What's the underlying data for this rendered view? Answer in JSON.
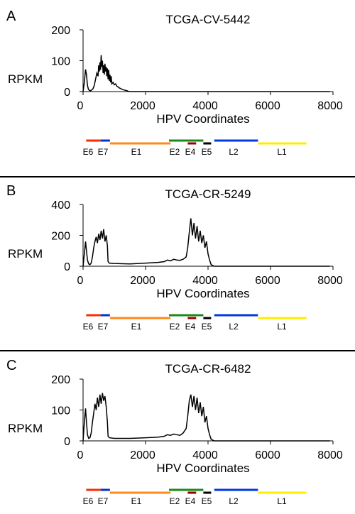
{
  "figure": {
    "x_axis_label": "HPV Coordinates",
    "y_axis_label": "RPKM",
    "gene_colors": {
      "E6": "#ff2a00",
      "E7": "#0033cc",
      "E1": "#ff8a1a",
      "E2": "#1a8a1a",
      "E4": "#990000",
      "E5": "#000000",
      "L2": "#0038e6",
      "L1": "#ffee00"
    }
  },
  "chart_data": [
    {
      "type": "line",
      "panel_label": "A",
      "title": "TCGA-CV-5442",
      "xlabel": "HPV Coordinates",
      "ylabel": "RPKM",
      "xlim": [
        0,
        8000
      ],
      "ylim": [
        0,
        200
      ],
      "x_ticks": [
        0,
        2000,
        4000,
        6000,
        8000
      ],
      "y_ticks": [
        0,
        100,
        200
      ],
      "grid": false,
      "legend": "none",
      "series": [
        {
          "x": [
            0,
            40,
            80,
            110,
            140,
            170,
            200,
            240,
            280,
            320,
            360,
            400,
            440,
            480,
            500,
            520,
            540,
            560,
            580,
            600,
            620,
            640,
            660,
            680,
            700,
            720,
            740,
            760,
            780,
            800,
            820,
            840,
            860,
            880,
            900,
            920,
            960,
            1000,
            1040,
            1080,
            1120,
            1160,
            1200,
            1240,
            1280,
            1320,
            1360,
            1400,
            1450,
            1500,
            2000,
            3000,
            4000,
            5000,
            6000,
            7000,
            7900
          ],
          "y": [
            0,
            30,
            72,
            55,
            20,
            8,
            4,
            3,
            5,
            10,
            20,
            40,
            60,
            50,
            85,
            65,
            95,
            70,
            118,
            80,
            100,
            60,
            85,
            55,
            90,
            65,
            80,
            50,
            75,
            40,
            70,
            35,
            55,
            30,
            50,
            25,
            30,
            22,
            25,
            18,
            15,
            12,
            10,
            8,
            6,
            5,
            4,
            3,
            1,
            0,
            0,
            0,
            0,
            0,
            0,
            0,
            0
          ]
        }
      ]
    },
    {
      "type": "line",
      "panel_label": "B",
      "title": "TCGA-CR-5249",
      "xlabel": "HPV Coordinates",
      "ylabel": "RPKM",
      "xlim": [
        0,
        8000
      ],
      "ylim": [
        0,
        400
      ],
      "x_ticks": [
        0,
        2000,
        4000,
        6000,
        8000
      ],
      "y_ticks": [
        0,
        200,
        400
      ],
      "grid": false,
      "legend": "none",
      "series": [
        {
          "x": [
            0,
            40,
            80,
            110,
            140,
            180,
            220,
            260,
            300,
            340,
            380,
            420,
            460,
            500,
            540,
            580,
            620,
            660,
            700,
            740,
            780,
            800,
            840,
            1000,
            1500,
            2000,
            2400,
            2600,
            2700,
            2800,
            2900,
            3000,
            3100,
            3200,
            3300,
            3350,
            3400,
            3450,
            3500,
            3550,
            3600,
            3650,
            3700,
            3750,
            3800,
            3850,
            3900,
            3950,
            4000,
            4050,
            4100,
            4200,
            5000,
            6000,
            7000,
            7900
          ],
          "y": [
            0,
            80,
            160,
            100,
            40,
            15,
            10,
            20,
            60,
            120,
            160,
            190,
            150,
            210,
            170,
            230,
            180,
            240,
            160,
            200,
            130,
            30,
            20,
            18,
            15,
            20,
            25,
            30,
            40,
            35,
            45,
            40,
            38,
            45,
            60,
            120,
            220,
            310,
            200,
            280,
            180,
            260,
            160,
            230,
            150,
            200,
            120,
            160,
            80,
            40,
            10,
            0,
            0,
            0,
            0,
            0
          ]
        }
      ]
    },
    {
      "type": "line",
      "panel_label": "C",
      "title": "TCGA-CR-6482",
      "xlabel": "HPV Coordinates",
      "ylabel": "RPKM",
      "xlim": [
        0,
        8000
      ],
      "ylim": [
        0,
        200
      ],
      "x_ticks": [
        0,
        2000,
        4000,
        6000,
        8000
      ],
      "y_ticks": [
        0,
        100,
        200
      ],
      "grid": false,
      "legend": "none",
      "series": [
        {
          "x": [
            0,
            40,
            80,
            110,
            140,
            180,
            220,
            260,
            300,
            340,
            380,
            420,
            460,
            500,
            540,
            580,
            620,
            660,
            700,
            740,
            780,
            800,
            840,
            1000,
            1500,
            2000,
            2400,
            2600,
            2700,
            2800,
            2900,
            3000,
            3100,
            3200,
            3300,
            3350,
            3400,
            3450,
            3500,
            3550,
            3600,
            3650,
            3700,
            3750,
            3800,
            3850,
            3900,
            3950,
            4000,
            4050,
            4100,
            4200,
            5000,
            6000,
            7000,
            7900
          ],
          "y": [
            0,
            60,
            105,
            60,
            20,
            8,
            10,
            25,
            60,
            90,
            120,
            100,
            140,
            110,
            150,
            120,
            155,
            130,
            145,
            110,
            60,
            15,
            10,
            8,
            8,
            10,
            12,
            15,
            20,
            18,
            22,
            20,
            18,
            25,
            40,
            80,
            130,
            150,
            110,
            145,
            100,
            140,
            90,
            125,
            80,
            110,
            60,
            80,
            40,
            20,
            5,
            0,
            0,
            0,
            0,
            0
          ]
        }
      ]
    }
  ],
  "genome_map": {
    "genes": [
      {
        "name": "E6",
        "start": 100,
        "end": 560,
        "row": 0
      },
      {
        "name": "E7",
        "start": 560,
        "end": 860,
        "row": 0
      },
      {
        "name": "E1",
        "start": 860,
        "end": 2800,
        "row": 1
      },
      {
        "name": "E2",
        "start": 2750,
        "end": 3850,
        "row": 0
      },
      {
        "name": "E4",
        "start": 3350,
        "end": 3620,
        "row": 1
      },
      {
        "name": "E5",
        "start": 3850,
        "end": 4100,
        "row": 1
      },
      {
        "name": "L2",
        "start": 4200,
        "end": 5600,
        "row": 0
      },
      {
        "name": "L1",
        "start": 5600,
        "end": 7150,
        "row": 1
      }
    ]
  }
}
